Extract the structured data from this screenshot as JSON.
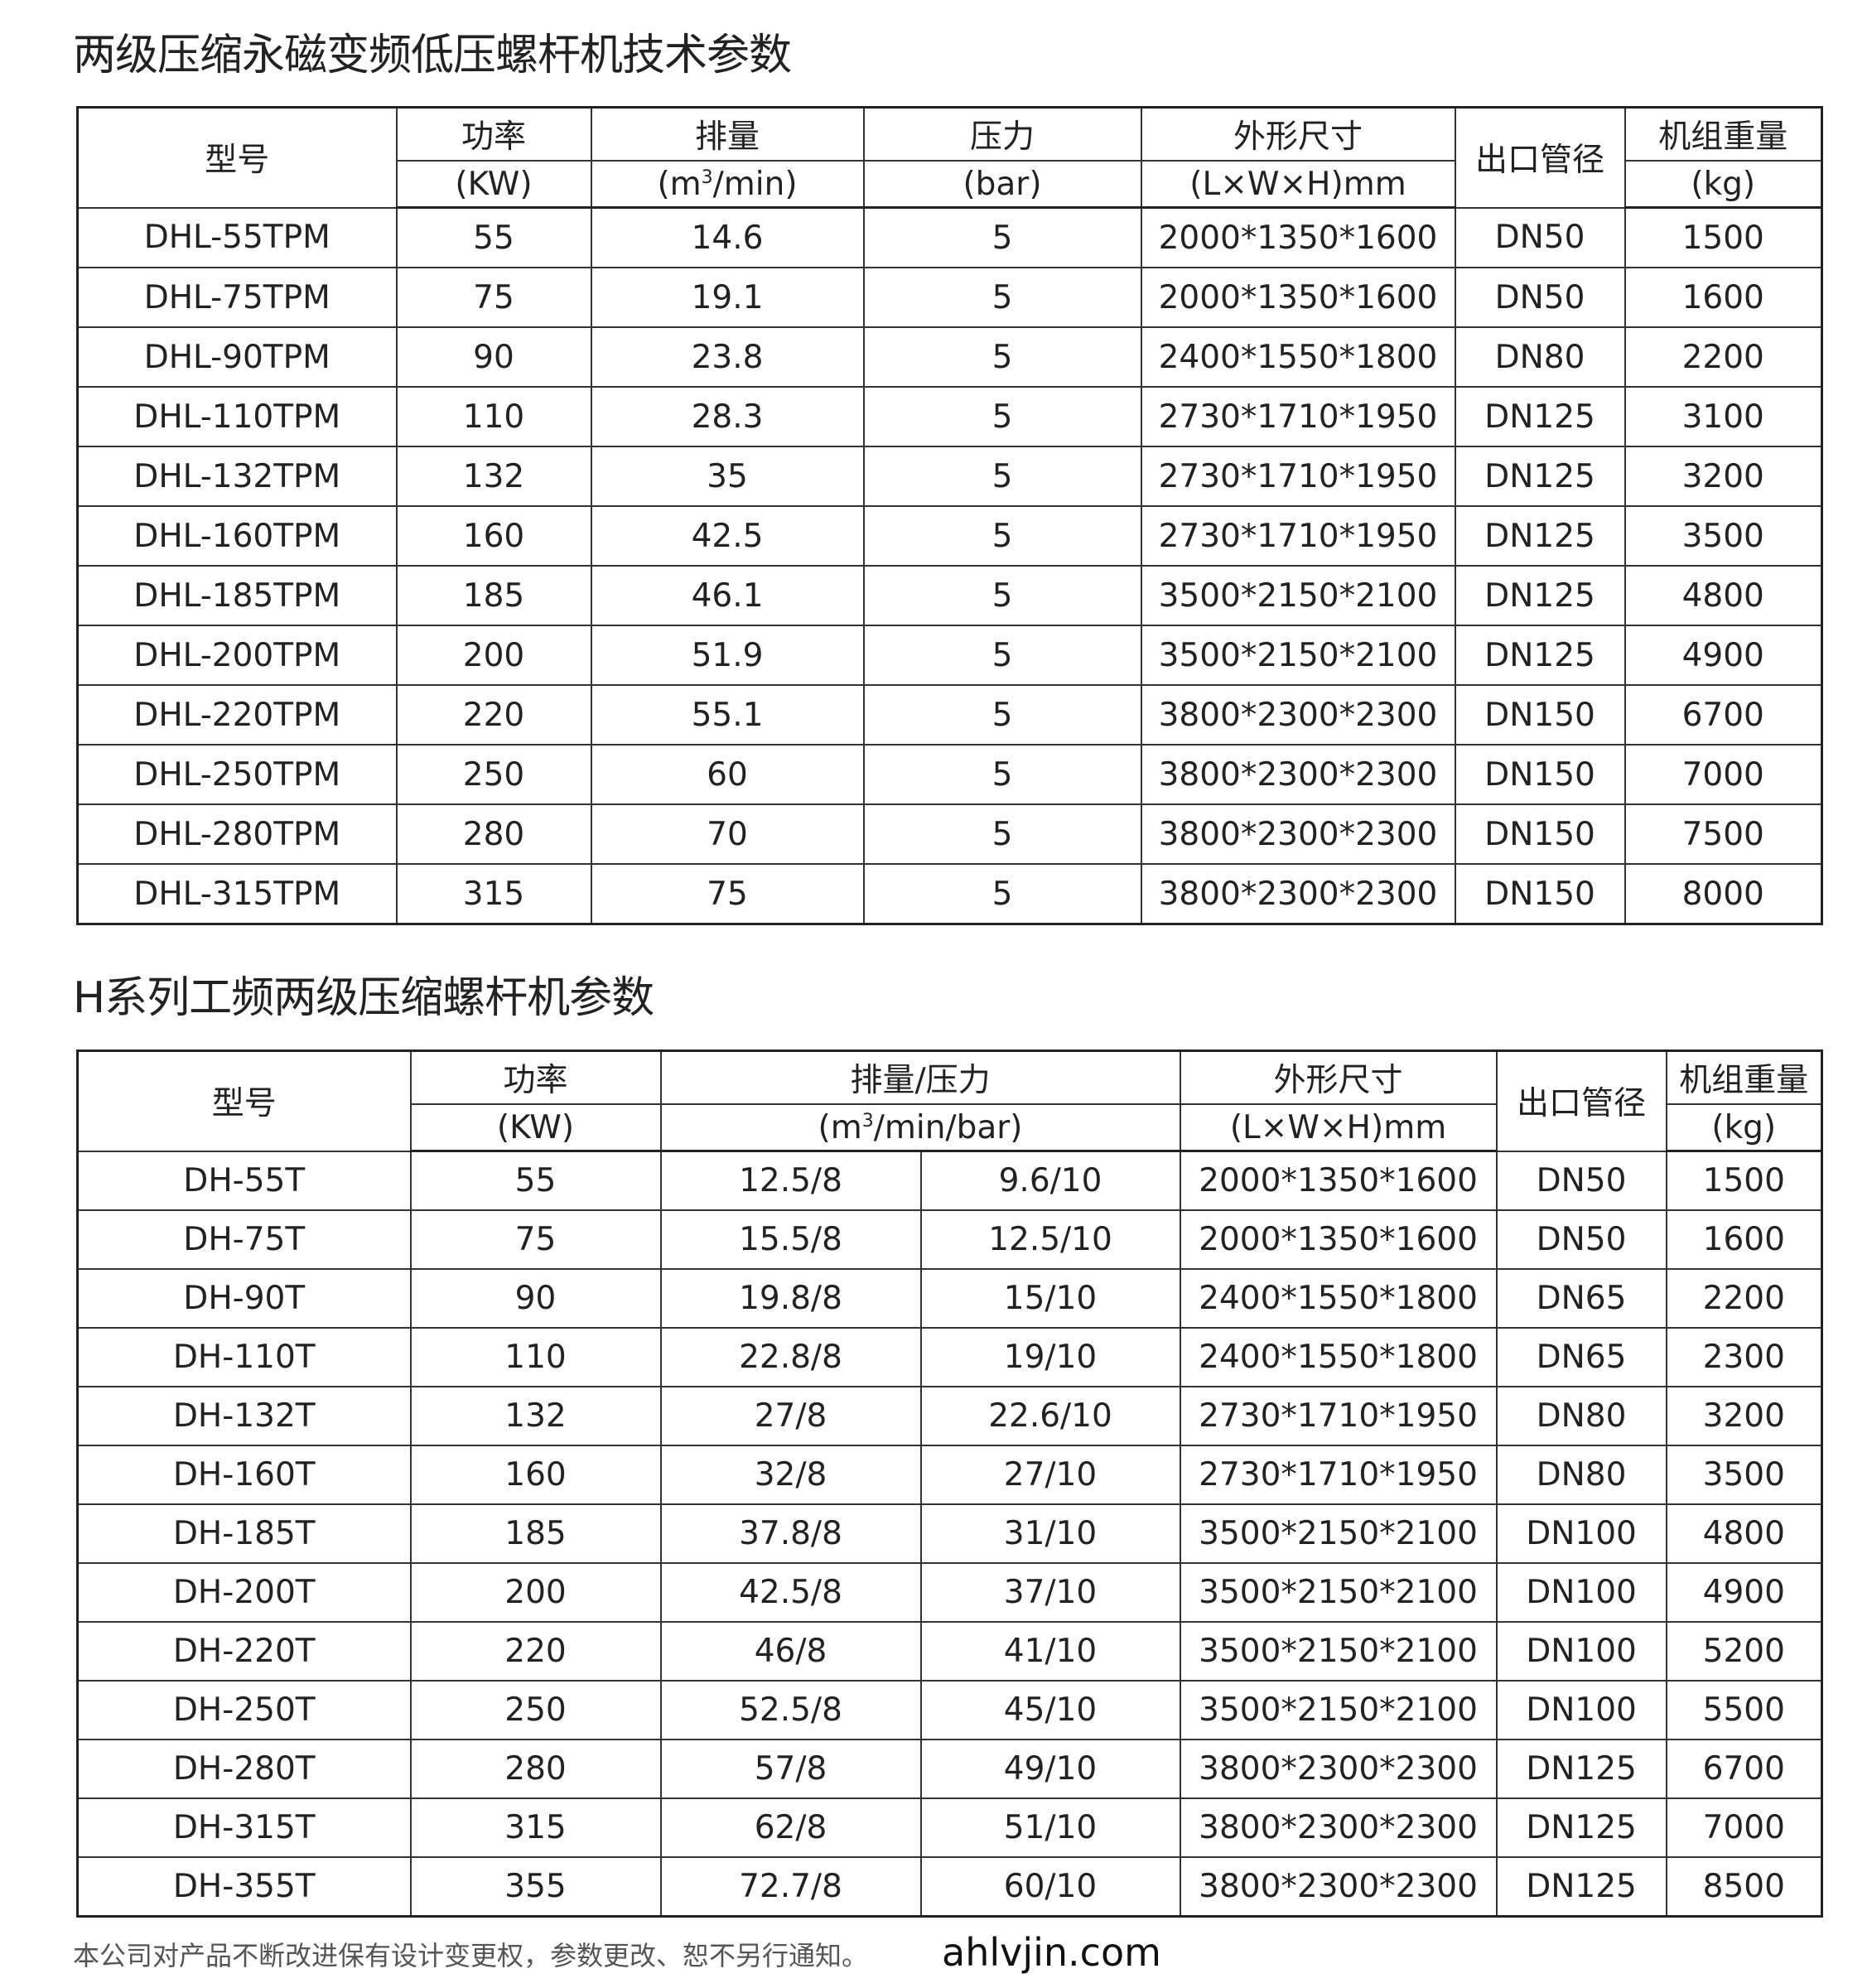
{
  "table1": {
    "title": "两级压缩永磁变频低压螺杆机技术参数",
    "headers": {
      "model": "型号",
      "power": "功率",
      "power_unit": "(KW)",
      "flow": "排量",
      "flow_unit_pre": "(m",
      "flow_unit_sup": "3",
      "flow_unit_post": "/min)",
      "pressure": "压力",
      "pressure_unit": "(bar)",
      "dims": "外形尺寸",
      "dims_unit": "(L×W×H)mm",
      "outlet": "出口管径",
      "weight": "机组重量",
      "weight_unit": "(kg)"
    },
    "rows": [
      [
        "DHL-55TPM",
        "55",
        "14.6",
        "5",
        "2000*1350*1600",
        "DN50",
        "1500"
      ],
      [
        "DHL-75TPM",
        "75",
        "19.1",
        "5",
        "2000*1350*1600",
        "DN50",
        "1600"
      ],
      [
        "DHL-90TPM",
        "90",
        "23.8",
        "5",
        "2400*1550*1800",
        "DN80",
        "2200"
      ],
      [
        "DHL-110TPM",
        "110",
        "28.3",
        "5",
        "2730*1710*1950",
        "DN125",
        "3100"
      ],
      [
        "DHL-132TPM",
        "132",
        "35",
        "5",
        "2730*1710*1950",
        "DN125",
        "3200"
      ],
      [
        "DHL-160TPM",
        "160",
        "42.5",
        "5",
        "2730*1710*1950",
        "DN125",
        "3500"
      ],
      [
        "DHL-185TPM",
        "185",
        "46.1",
        "5",
        "3500*2150*2100",
        "DN125",
        "4800"
      ],
      [
        "DHL-200TPM",
        "200",
        "51.9",
        "5",
        "3500*2150*2100",
        "DN125",
        "4900"
      ],
      [
        "DHL-220TPM",
        "220",
        "55.1",
        "5",
        "3800*2300*2300",
        "DN150",
        "6700"
      ],
      [
        "DHL-250TPM",
        "250",
        "60",
        "5",
        "3800*2300*2300",
        "DN150",
        "7000"
      ],
      [
        "DHL-280TPM",
        "280",
        "70",
        "5",
        "3800*2300*2300",
        "DN150",
        "7500"
      ],
      [
        "DHL-315TPM",
        "315",
        "75",
        "5",
        "3800*2300*2300",
        "DN150",
        "8000"
      ]
    ]
  },
  "table2": {
    "title": "H系列工频两级压缩螺杆机参数",
    "headers": {
      "model": "型号",
      "power": "功率",
      "power_unit": "(KW)",
      "flow_pressure": "排量/压力",
      "fp_unit_pre": "(m",
      "fp_unit_sup": "3",
      "fp_unit_post": "/min/bar)",
      "dims": "外形尺寸",
      "dims_unit": "(L×W×H)mm",
      "outlet": "出口管径",
      "weight": "机组重量",
      "weight_unit": "(kg)"
    },
    "rows": [
      [
        "DH-55T",
        "55",
        "12.5/8",
        "9.6/10",
        "2000*1350*1600",
        "DN50",
        "1500"
      ],
      [
        "DH-75T",
        "75",
        "15.5/8",
        "12.5/10",
        "2000*1350*1600",
        "DN50",
        "1600"
      ],
      [
        "DH-90T",
        "90",
        "19.8/8",
        "15/10",
        "2400*1550*1800",
        "DN65",
        "2200"
      ],
      [
        "DH-110T",
        "110",
        "22.8/8",
        "19/10",
        "2400*1550*1800",
        "DN65",
        "2300"
      ],
      [
        "DH-132T",
        "132",
        "27/8",
        "22.6/10",
        "2730*1710*1950",
        "DN80",
        "3200"
      ],
      [
        "DH-160T",
        "160",
        "32/8",
        "27/10",
        "2730*1710*1950",
        "DN80",
        "3500"
      ],
      [
        "DH-185T",
        "185",
        "37.8/8",
        "31/10",
        "3500*2150*2100",
        "DN100",
        "4800"
      ],
      [
        "DH-200T",
        "200",
        "42.5/8",
        "37/10",
        "3500*2150*2100",
        "DN100",
        "4900"
      ],
      [
        "DH-220T",
        "220",
        "46/8",
        "41/10",
        "3500*2150*2100",
        "DN100",
        "5200"
      ],
      [
        "DH-250T",
        "250",
        "52.5/8",
        "45/10",
        "3500*2150*2100",
        "DN100",
        "5500"
      ],
      [
        "DH-280T",
        "280",
        "57/8",
        "49/10",
        "3800*2300*2300",
        "DN125",
        "6700"
      ],
      [
        "DH-315T",
        "315",
        "62/8",
        "51/10",
        "3800*2300*2300",
        "DN125",
        "7000"
      ],
      [
        "DH-355T",
        "355",
        "72.7/8",
        "60/10",
        "3800*2300*2300",
        "DN125",
        "8500"
      ]
    ]
  },
  "footer": {
    "notice": "本公司对产品不断改进保有设计变更权，参数更改、恕不另行通知。",
    "website": "ahlvjin.com"
  }
}
